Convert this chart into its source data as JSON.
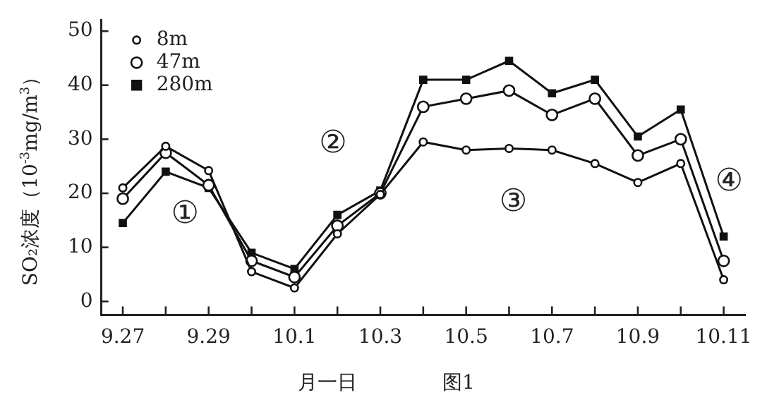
{
  "chart_data": {
    "type": "line",
    "xlabel": "月一日",
    "ylabel": "SO₂浓度（10$^{-3}$mg/m$^{3}$）",
    "categories": [
      "9.27",
      null,
      "9.29",
      null,
      "10.1",
      null,
      "10.3",
      null,
      "10.5",
      null,
      "10.7",
      null,
      "10.9",
      null,
      "10.11"
    ],
    "series": [
      {
        "name": "8m",
        "color": "#111111",
        "marker": "circle",
        "values": [
          21,
          28.7,
          24.2,
          5.5,
          2.5,
          12.5,
          19.8,
          29.5,
          28,
          28.3,
          28,
          25.5,
          22,
          25.5,
          4
        ]
      },
      {
        "name": "47m",
        "color": "#111111",
        "marker": "circle",
        "values": [
          19,
          27.5,
          21.5,
          7.5,
          4.5,
          14,
          20,
          36,
          37.5,
          39,
          34.5,
          37.5,
          27,
          30,
          7.5
        ]
      },
      {
        "name": "280m",
        "color": "#111111",
        "marker": "square",
        "values": [
          14.5,
          24,
          21,
          9,
          6,
          16,
          20.5,
          41,
          41,
          44.5,
          38.5,
          41,
          30.5,
          35.5,
          12
        ]
      }
    ],
    "ylim": [
      -2.5,
      52
    ],
    "yticks": [
      0,
      10,
      20,
      30,
      40,
      50
    ],
    "grid": false,
    "legend": "top left",
    "annotations": [
      "①",
      "②",
      "③",
      "④",
      "图1"
    ]
  }
}
